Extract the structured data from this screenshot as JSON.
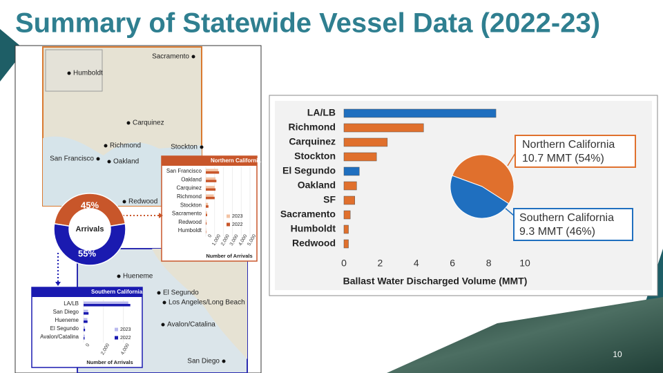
{
  "title": "Summary of Statewide Vessel Data (2022-23)",
  "slide_number": "10",
  "map": {
    "labels": [
      "Sacramento",
      "Humboldt",
      "Carquinez",
      "Richmond",
      "Stockton",
      "San Francisco",
      "Oakland",
      "Redwood",
      "Hueneme",
      "El Segundo",
      "Los Angeles/Long Beach",
      "Avalon/Catalina",
      "San Diego"
    ]
  },
  "chart_data": [
    {
      "type": "hbar",
      "categories": [
        "LA/LB",
        "Richmond",
        "Carquinez",
        "Stockton",
        "El Segundo",
        "Oakland",
        "SF",
        "Sacramento",
        "Humboldt",
        "Redwood"
      ],
      "values": [
        8.4,
        4.4,
        2.4,
        1.8,
        0.85,
        0.7,
        0.6,
        0.35,
        0.25,
        0.25
      ],
      "colors": [
        "#1f6fbf",
        "#e0702d",
        "#e0702d",
        "#e0702d",
        "#1f6fbf",
        "#e0702d",
        "#e0702d",
        "#e0702d",
        "#e0702d",
        "#e0702d"
      ],
      "xlim": [
        0,
        10
      ],
      "xticks": [
        0,
        2,
        4,
        6,
        8,
        10
      ],
      "x_label": "Ballast Water Discharged Volume (MMT)"
    },
    {
      "type": "pie",
      "categories": [
        "Northern California",
        "Southern California"
      ],
      "values": [
        10.7,
        9.3
      ],
      "value_labels": [
        "10.7 MMT (54%)",
        "9.3 MMT (46%)"
      ],
      "colors": [
        "#e0702d",
        "#1f6fbf"
      ]
    },
    {
      "type": "donut",
      "title": "Arrivals",
      "values": [
        45,
        55
      ],
      "value_labels": [
        "45%",
        "55%"
      ],
      "colors": [
        "#c8562a",
        "#1a1ab0"
      ]
    },
    {
      "type": "grouped_hbar",
      "title": "Northern California",
      "categories": [
        "San Francisco",
        "Oakland",
        "Carquinez",
        "Richmond",
        "Stockton",
        "Sacramento",
        "Redwood",
        "Humboldt"
      ],
      "series": [
        {
          "name": "2023",
          "color": "#f3c3a4",
          "values": [
            1400,
            1100,
            1000,
            900,
            250,
            130,
            70,
            40
          ]
        },
        {
          "name": "2022",
          "color": "#c8562a",
          "values": [
            1500,
            1200,
            1100,
            1000,
            300,
            150,
            80,
            40
          ]
        }
      ],
      "xlim": [
        0,
        5000
      ],
      "xticks": [
        0,
        {
          "value": 1000,
          "label": "1,000"
        },
        {
          "value": 2000,
          "label": "2,000"
        },
        {
          "value": 3000,
          "label": "3,000"
        },
        {
          "value": 4000,
          "label": "4,000"
        },
        {
          "value": 5000,
          "label": "5,000"
        }
      ],
      "x_label": "Number of Arrivals"
    },
    {
      "type": "grouped_hbar",
      "title": "Southern California",
      "categories": [
        "LA/LB",
        "San Diego",
        "Hueneme",
        "El Segundo",
        "Avalon/Catalina"
      ],
      "series": [
        {
          "name": "2023",
          "color": "#b9b9ee",
          "values": [
            4500,
            450,
            380,
            140,
            120
          ]
        },
        {
          "name": "2022",
          "color": "#1a1ab0",
          "values": [
            4700,
            500,
            400,
            150,
            100
          ]
        }
      ],
      "xlim": [
        0,
        5000
      ],
      "xticks": [
        0,
        {
          "value": 2000,
          "label": "2,000"
        },
        {
          "value": 4000,
          "label": "4,000"
        }
      ],
      "x_label": "Number of Arrivals"
    }
  ]
}
